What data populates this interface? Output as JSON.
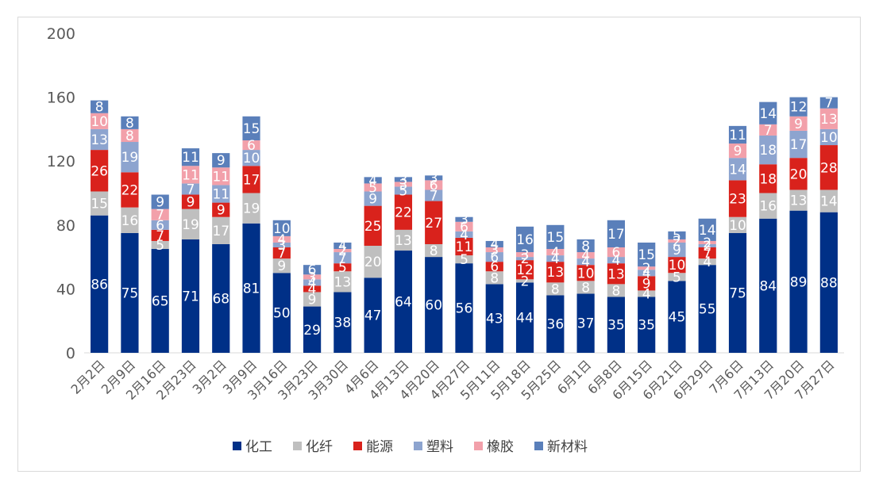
{
  "chart_data": {
    "type": "bar",
    "stacked": true,
    "title": "",
    "xlabel": "",
    "ylabel": "",
    "ylim": [
      0,
      200
    ],
    "yticks": [
      0,
      40,
      80,
      120,
      160,
      200
    ],
    "grid": false,
    "legend_position": "bottom",
    "categories": [
      "2月2日",
      "2月9日",
      "2月16日",
      "2月23日",
      "3月2日",
      "3月9日",
      "3月16日",
      "3月23日",
      "3月30日",
      "4月6日",
      "4月13日",
      "4月20日",
      "4月27日",
      "5月11日",
      "5月18日",
      "5月25日",
      "6月1日",
      "6月8日",
      "6月15日",
      "6月21日",
      "6月29日",
      "7月6日",
      "7月13日",
      "7月20日",
      "7月27日"
    ],
    "series": [
      {
        "name": "化工",
        "color": "#003087",
        "values": [
          86,
          75,
          65,
          71,
          68,
          81,
          50,
          29,
          38,
          47,
          64,
          60,
          56,
          43,
          44,
          36,
          37,
          35,
          35,
          45,
          55,
          75,
          84,
          89,
          88
        ]
      },
      {
        "name": "化纤",
        "color": "#bfbfbf",
        "values": [
          15,
          16,
          5,
          19,
          17,
          19,
          9,
          9,
          13,
          20,
          13,
          8,
          5,
          8,
          2,
          8,
          8,
          8,
          4,
          5,
          4,
          10,
          16,
          13,
          14
        ]
      },
      {
        "name": "能源",
        "color": "#d9221c",
        "values": [
          26,
          22,
          7,
          9,
          9,
          17,
          7,
          4,
          5,
          25,
          22,
          27,
          11,
          6,
          12,
          13,
          10,
          13,
          9,
          10,
          7,
          23,
          18,
          20,
          28
        ]
      },
      {
        "name": "塑料",
        "color": "#8da4cf",
        "values": [
          13,
          19,
          6,
          7,
          11,
          10,
          3,
          4,
          7,
          9,
          5,
          7,
          4,
          6,
          2,
          4,
          4,
          4,
          4,
          9,
          2,
          14,
          18,
          17,
          10
        ]
      },
      {
        "name": "橡胶",
        "color": "#f2a0aa",
        "values": [
          10,
          8,
          7,
          11,
          11,
          6,
          4,
          3,
          2,
          5,
          3,
          6,
          6,
          3,
          3,
          4,
          4,
          6,
          2,
          2,
          2,
          9,
          7,
          9,
          13
        ]
      },
      {
        "name": "新材料",
        "color": "#5a7fba",
        "values": [
          8,
          8,
          9,
          11,
          9,
          15,
          10,
          6,
          4,
          4,
          3,
          3,
          3,
          4,
          16,
          15,
          8,
          17,
          15,
          5,
          14,
          11,
          14,
          12,
          7
        ]
      }
    ]
  }
}
